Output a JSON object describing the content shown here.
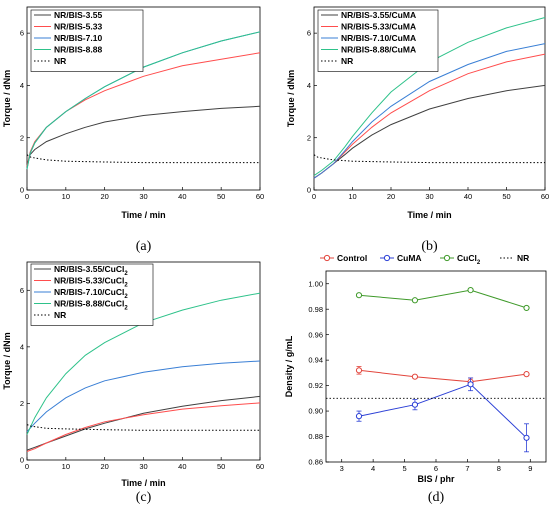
{
  "chart_data": [
    {
      "type": "line",
      "caption": "(a)",
      "xlabel": "Time / min",
      "ylabel": "Torque / dNm",
      "xlim": [
        0,
        60
      ],
      "ylim": [
        0,
        7
      ],
      "xticks": [
        "0",
        "10",
        "20",
        "30",
        "40",
        "50",
        "60"
      ],
      "yticks": [
        "0",
        "2",
        "4",
        "6"
      ],
      "legend_position": "top-left",
      "series": [
        {
          "name": "NR/BIS-3.55",
          "color": "#404040",
          "dash": "solid",
          "x": [
            0,
            0.8,
            2,
            5,
            10,
            15,
            20,
            30,
            40,
            50,
            60
          ],
          "y": [
            0.9,
            1.35,
            1.55,
            1.85,
            2.15,
            2.4,
            2.6,
            2.85,
            3.0,
            3.12,
            3.2
          ]
        },
        {
          "name": "NR/BIS-5.33",
          "color": "#ff4d4d",
          "dash": "solid",
          "x": [
            0,
            0.8,
            2,
            5,
            10,
            15,
            20,
            30,
            40,
            50,
            60
          ],
          "y": [
            0.9,
            1.45,
            1.85,
            2.4,
            3.0,
            3.45,
            3.8,
            4.35,
            4.75,
            5.0,
            5.25
          ]
        },
        {
          "name": "NR/BIS-7.10",
          "color": "#3a7fd5",
          "dash": "solid",
          "x": [
            0,
            0.8,
            2,
            5,
            10,
            15,
            20,
            30,
            40,
            50,
            60
          ],
          "y": [
            0.8,
            1.4,
            1.8,
            2.4,
            3.0,
            3.5,
            3.95,
            4.7,
            5.25,
            5.7,
            6.05
          ]
        },
        {
          "name": "NR/BIS-8.88",
          "color": "#2ec28a",
          "dash": "solid",
          "x": [
            0,
            0.8,
            2,
            5,
            10,
            15,
            20,
            30,
            40,
            50,
            60
          ],
          "y": [
            0.8,
            1.4,
            1.8,
            2.4,
            3.0,
            3.5,
            3.95,
            4.7,
            5.25,
            5.7,
            6.05
          ]
        },
        {
          "name": "NR",
          "color": "#000000",
          "dash": "dotted",
          "x": [
            0,
            1,
            5,
            10,
            20,
            30,
            40,
            50,
            60
          ],
          "y": [
            1.35,
            1.25,
            1.15,
            1.1,
            1.07,
            1.05,
            1.05,
            1.05,
            1.05
          ]
        }
      ]
    },
    {
      "type": "line",
      "caption": "(b)",
      "xlabel": "Time / min",
      "ylabel": "Torque / dNm",
      "xlim": [
        0,
        60
      ],
      "ylim": [
        0,
        7
      ],
      "xticks": [
        "0",
        "10",
        "20",
        "30",
        "40",
        "50",
        "60"
      ],
      "yticks": [
        "0",
        "2",
        "4",
        "6"
      ],
      "legend_position": "top-left",
      "series": [
        {
          "name": "NR/BIS-3.55/CuMA",
          "color": "#404040",
          "dash": "solid",
          "x": [
            0,
            2,
            5,
            8,
            10,
            15,
            20,
            30,
            40,
            50,
            60
          ],
          "y": [
            0.45,
            0.65,
            1.0,
            1.35,
            1.6,
            2.1,
            2.5,
            3.1,
            3.5,
            3.8,
            4.0
          ]
        },
        {
          "name": "NR/BIS-5.33/CuMA",
          "color": "#ff4d4d",
          "dash": "solid",
          "x": [
            0,
            2,
            5,
            8,
            10,
            15,
            20,
            30,
            40,
            50,
            60
          ],
          "y": [
            0.45,
            0.65,
            1.0,
            1.45,
            1.75,
            2.4,
            2.95,
            3.8,
            4.45,
            4.9,
            5.2
          ]
        },
        {
          "name": "NR/BIS-7.10/CuMA",
          "color": "#3a7fd5",
          "dash": "solid",
          "x": [
            0,
            2,
            5,
            8,
            10,
            15,
            20,
            30,
            40,
            50,
            60
          ],
          "y": [
            0.45,
            0.65,
            1.0,
            1.5,
            1.85,
            2.6,
            3.2,
            4.15,
            4.8,
            5.3,
            5.6
          ]
        },
        {
          "name": "NR/BIS-8.88/CuMA",
          "color": "#2ec28a",
          "dash": "solid",
          "x": [
            0,
            2,
            5,
            8,
            10,
            15,
            20,
            30,
            40,
            50,
            60
          ],
          "y": [
            0.55,
            0.75,
            1.1,
            1.65,
            2.05,
            2.95,
            3.75,
            4.9,
            5.65,
            6.2,
            6.6
          ]
        },
        {
          "name": "NR",
          "color": "#000000",
          "dash": "dotted",
          "x": [
            0,
            1,
            5,
            10,
            20,
            30,
            40,
            50,
            60
          ],
          "y": [
            1.35,
            1.25,
            1.15,
            1.1,
            1.07,
            1.05,
            1.05,
            1.05,
            1.05
          ]
        }
      ]
    },
    {
      "type": "line",
      "caption": "(c)",
      "xlabel": "Time / min",
      "ylabel": "Torque / dNm",
      "xlim": [
        0,
        60
      ],
      "ylim": [
        0,
        7
      ],
      "xticks": [
        "0",
        "10",
        "20",
        "30",
        "40",
        "50",
        "60"
      ],
      "yticks": [
        "0",
        "2",
        "4",
        "6"
      ],
      "legend_position": "top-left",
      "series": [
        {
          "name": "NR/BIS-3.55/CuCl",
          "sub": "2",
          "color": "#404040",
          "dash": "solid",
          "x": [
            0,
            2,
            5,
            10,
            15,
            20,
            30,
            40,
            50,
            60
          ],
          "y": [
            0.35,
            0.45,
            0.6,
            0.85,
            1.1,
            1.3,
            1.65,
            1.9,
            2.1,
            2.25
          ]
        },
        {
          "name": "NR/BIS-5.33/CuCl",
          "sub": "2",
          "color": "#ff4d4d",
          "dash": "solid",
          "x": [
            0,
            2,
            5,
            10,
            15,
            20,
            30,
            40,
            50,
            60
          ],
          "y": [
            0.3,
            0.4,
            0.6,
            0.9,
            1.15,
            1.35,
            1.6,
            1.8,
            1.92,
            2.02
          ]
        },
        {
          "name": "NR/BIS-7.10/CuCl",
          "sub": "2",
          "color": "#3a7fd5",
          "dash": "solid",
          "x": [
            0,
            2,
            5,
            10,
            15,
            20,
            30,
            40,
            50,
            60
          ],
          "y": [
            1.0,
            1.3,
            1.7,
            2.2,
            2.55,
            2.8,
            3.1,
            3.3,
            3.42,
            3.5
          ]
        },
        {
          "name": "NR/BIS-8.88/CuCl",
          "sub": "2",
          "color": "#2ec28a",
          "dash": "solid",
          "x": [
            0,
            2,
            5,
            10,
            15,
            20,
            30,
            40,
            50,
            60
          ],
          "y": [
            0.9,
            1.5,
            2.2,
            3.05,
            3.7,
            4.15,
            4.85,
            5.3,
            5.65,
            5.9
          ]
        },
        {
          "name": "NR",
          "color": "#000000",
          "dash": "dotted",
          "x": [
            0,
            1,
            5,
            10,
            20,
            30,
            40,
            50,
            60
          ],
          "y": [
            1.25,
            1.2,
            1.12,
            1.1,
            1.07,
            1.05,
            1.05,
            1.05,
            1.05
          ]
        }
      ]
    },
    {
      "type": "scatter",
      "caption": "(d)",
      "xlabel": "BIS / phr",
      "ylabel": "Density / g/mL",
      "xlim": [
        2.5,
        9.5
      ],
      "ylim": [
        0.86,
        1.01
      ],
      "xticks": [
        "3",
        "4",
        "5",
        "6",
        "7",
        "8",
        "9"
      ],
      "yticks": [
        "0.86",
        "0.88",
        "0.90",
        "0.92",
        "0.94",
        "0.96",
        "0.98",
        "1.00"
      ],
      "legend_position": "top",
      "x": [
        3.55,
        5.33,
        7.1,
        8.88
      ],
      "series": [
        {
          "name": "Control",
          "color": "#e2453c",
          "y": [
            0.932,
            0.927,
            0.923,
            0.929
          ],
          "err": [
            0.003,
            0.001,
            0.003,
            0.001
          ]
        },
        {
          "name": "CuMA",
          "color": "#2b3fd6",
          "y": [
            0.896,
            0.905,
            0.921,
            0.879
          ],
          "err": [
            0.004,
            0.004,
            0.005,
            0.011
          ]
        },
        {
          "name": "CuCl",
          "sub": "2",
          "color": "#3f9a2a",
          "y": [
            0.991,
            0.987,
            0.995,
            0.981
          ],
          "err": [
            0.001,
            0.001,
            0.001,
            0.001
          ]
        },
        {
          "name": "NR",
          "color": "#000000",
          "dash": "dotted",
          "hline": 0.91
        }
      ]
    }
  ]
}
